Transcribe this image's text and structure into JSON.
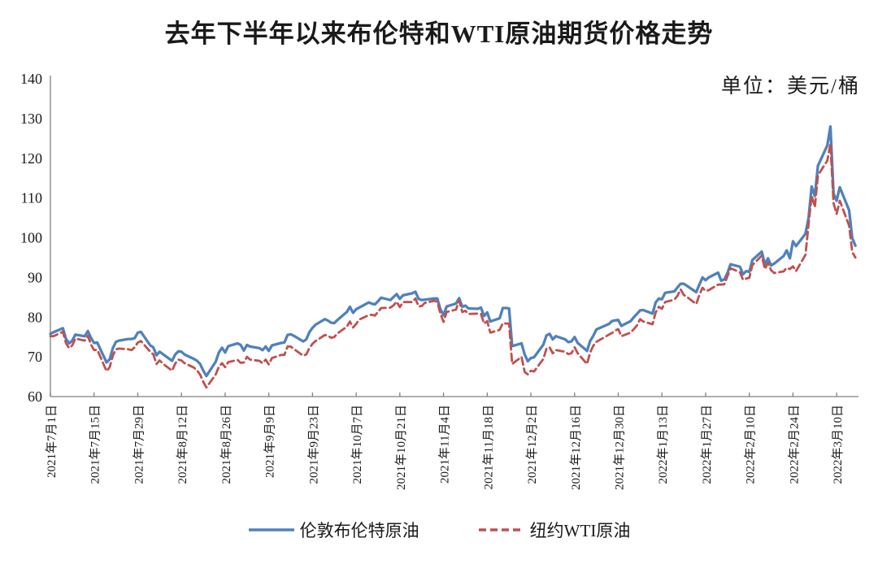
{
  "title": "去年下半年以来布伦特和WTI原油期货价格走势",
  "unit_label": "单位：美元/桶",
  "legend": [
    {
      "label": "伦敦布伦特原油",
      "color": "#4F81BD",
      "line_style": "solid"
    },
    {
      "label": "纽约WTI原油",
      "color": "#C0504D",
      "line_style": "dashed"
    }
  ],
  "chart_data": {
    "type": "line",
    "title": "去年下半年以来布伦特和WTI原油期货价格走势",
    "unit": "美元/桶",
    "grid": false,
    "legend_position": "bottom",
    "axis_color": "#808080",
    "ylim": [
      60,
      140
    ],
    "yticks": [
      60,
      70,
      80,
      90,
      100,
      110,
      120,
      130,
      140
    ],
    "xtick_interval_days": 14,
    "xtick_labels": [
      "2021年7月1日",
      "2021年7月15日",
      "2021年7月29日",
      "2021年8月12日",
      "2021年8月26日",
      "2021年9月9日",
      "2021年9月23日",
      "2021年10月7日",
      "2021年10月21日",
      "2021年11月4日",
      "2021年11月18日",
      "2021年12月2日",
      "2021年12月16日",
      "2021年12月30日",
      "2022年1月13日",
      "2022年1月27日",
      "2022年2月10日",
      "2022年2月24日",
      "2022年3月10日"
    ],
    "x_range": [
      "2021-07-01",
      "2022-03-17"
    ],
    "x_dates": [
      "2021-07-01",
      "2021-07-02",
      "2021-07-05",
      "2021-07-06",
      "2021-07-07",
      "2021-07-08",
      "2021-07-09",
      "2021-07-12",
      "2021-07-13",
      "2021-07-14",
      "2021-07-15",
      "2021-07-16",
      "2021-07-19",
      "2021-07-20",
      "2021-07-21",
      "2021-07-22",
      "2021-07-23",
      "2021-07-26",
      "2021-07-27",
      "2021-07-28",
      "2021-07-29",
      "2021-07-30",
      "2021-08-02",
      "2021-08-03",
      "2021-08-04",
      "2021-08-05",
      "2021-08-06",
      "2021-08-09",
      "2021-08-10",
      "2021-08-11",
      "2021-08-12",
      "2021-08-13",
      "2021-08-16",
      "2021-08-17",
      "2021-08-18",
      "2021-08-19",
      "2021-08-20",
      "2021-08-23",
      "2021-08-24",
      "2021-08-25",
      "2021-08-26",
      "2021-08-27",
      "2021-08-30",
      "2021-08-31",
      "2021-09-01",
      "2021-09-02",
      "2021-09-03",
      "2021-09-06",
      "2021-09-07",
      "2021-09-08",
      "2021-09-09",
      "2021-09-10",
      "2021-09-13",
      "2021-09-14",
      "2021-09-15",
      "2021-09-16",
      "2021-09-17",
      "2021-09-20",
      "2021-09-21",
      "2021-09-22",
      "2021-09-23",
      "2021-09-24",
      "2021-09-27",
      "2021-09-28",
      "2021-09-29",
      "2021-09-30",
      "2021-10-01",
      "2021-10-04",
      "2021-10-05",
      "2021-10-06",
      "2021-10-07",
      "2021-10-08",
      "2021-10-11",
      "2021-10-12",
      "2021-10-13",
      "2021-10-14",
      "2021-10-15",
      "2021-10-18",
      "2021-10-19",
      "2021-10-20",
      "2021-10-21",
      "2021-10-22",
      "2021-10-25",
      "2021-10-26",
      "2021-10-27",
      "2021-10-28",
      "2021-10-29",
      "2021-11-01",
      "2021-11-02",
      "2021-11-03",
      "2021-11-04",
      "2021-11-05",
      "2021-11-08",
      "2021-11-09",
      "2021-11-10",
      "2021-11-11",
      "2021-11-12",
      "2021-11-15",
      "2021-11-16",
      "2021-11-17",
      "2021-11-18",
      "2021-11-19",
      "2021-11-22",
      "2021-11-23",
      "2021-11-24",
      "2021-11-25",
      "2021-11-26",
      "2021-11-29",
      "2021-11-30",
      "2021-12-01",
      "2021-12-02",
      "2021-12-03",
      "2021-12-06",
      "2021-12-07",
      "2021-12-08",
      "2021-12-09",
      "2021-12-10",
      "2021-12-13",
      "2021-12-14",
      "2021-12-15",
      "2021-12-16",
      "2021-12-17",
      "2021-12-20",
      "2021-12-21",
      "2021-12-22",
      "2021-12-23",
      "2021-12-27",
      "2021-12-28",
      "2021-12-29",
      "2021-12-30",
      "2021-12-31",
      "2022-01-03",
      "2022-01-04",
      "2022-01-05",
      "2022-01-06",
      "2022-01-07",
      "2022-01-10",
      "2022-01-11",
      "2022-01-12",
      "2022-01-13",
      "2022-01-14",
      "2022-01-17",
      "2022-01-18",
      "2022-01-19",
      "2022-01-20",
      "2022-01-21",
      "2022-01-24",
      "2022-01-25",
      "2022-01-26",
      "2022-01-27",
      "2022-01-28",
      "2022-01-31",
      "2022-02-01",
      "2022-02-02",
      "2022-02-03",
      "2022-02-04",
      "2022-02-07",
      "2022-02-08",
      "2022-02-09",
      "2022-02-10",
      "2022-02-11",
      "2022-02-14",
      "2022-02-15",
      "2022-02-16",
      "2022-02-17",
      "2022-02-18",
      "2022-02-21",
      "2022-02-22",
      "2022-02-23",
      "2022-02-24",
      "2022-02-25",
      "2022-02-28",
      "2022-03-01",
      "2022-03-02",
      "2022-03-03",
      "2022-03-04",
      "2022-03-07",
      "2022-03-08",
      "2022-03-09",
      "2022-03-10",
      "2022-03-11",
      "2022-03-14",
      "2022-03-15",
      "2022-03-16"
    ],
    "series": [
      {
        "name": "伦敦布伦特原油",
        "data_name": "brent-price-line",
        "color": "#4F81BD",
        "dashed": false,
        "values": [
          75.8,
          76.2,
          77.2,
          74.5,
          73.4,
          74.1,
          75.6,
          75.2,
          76.5,
          74.8,
          73.5,
          73.6,
          68.6,
          69.4,
          72.2,
          73.8,
          74.1,
          74.5,
          74.5,
          74.7,
          76.1,
          76.3,
          72.9,
          72.4,
          70.4,
          71.3,
          70.7,
          69.0,
          70.6,
          71.4,
          71.3,
          70.6,
          69.5,
          69.0,
          68.2,
          66.5,
          65.2,
          68.8,
          71.1,
          72.3,
          71.1,
          72.7,
          73.4,
          73.0,
          71.6,
          73.0,
          72.6,
          72.2,
          71.7,
          72.6,
          71.5,
          72.9,
          73.5,
          73.6,
          75.5,
          75.7,
          75.3,
          73.9,
          74.4,
          76.2,
          77.3,
          78.1,
          79.5,
          79.1,
          78.6,
          78.5,
          79.3,
          81.3,
          82.6,
          81.1,
          82.0,
          82.4,
          83.7,
          83.4,
          83.2,
          84.0,
          84.9,
          84.3,
          85.1,
          85.8,
          84.6,
          85.5,
          86.0,
          86.4,
          84.6,
          84.3,
          84.4,
          84.7,
          84.7,
          82.0,
          80.5,
          82.7,
          83.4,
          84.8,
          82.6,
          82.9,
          82.2,
          82.1,
          82.4,
          80.3,
          81.2,
          78.9,
          79.7,
          82.3,
          82.3,
          82.2,
          72.7,
          73.4,
          70.6,
          68.9,
          69.7,
          69.9,
          73.1,
          75.4,
          75.8,
          74.4,
          75.2,
          74.4,
          73.7,
          73.9,
          75.0,
          73.5,
          71.5,
          74.0,
          75.3,
          76.9,
          78.3,
          79.0,
          79.2,
          79.3,
          77.8,
          79.0,
          80.0,
          80.8,
          81.7,
          81.8,
          80.9,
          83.7,
          84.7,
          84.5,
          86.1,
          86.5,
          87.5,
          88.4,
          88.4,
          87.9,
          86.3,
          88.2,
          90.0,
          89.3,
          90.0,
          91.2,
          89.2,
          89.5,
          91.1,
          93.3,
          92.7,
          90.8,
          91.6,
          91.4,
          94.4,
          96.5,
          93.3,
          94.8,
          93.0,
          93.5,
          95.4,
          96.8,
          94.8,
          99.1,
          97.9,
          101.0,
          105.0,
          112.9,
          110.5,
          118.1,
          123.2,
          128.0,
          111.1,
          109.3,
          112.7,
          106.9,
          99.9,
          98.0
        ]
      },
      {
        "name": "纽约WTI原油",
        "data_name": "wti-price-line",
        "color": "#C0504D",
        "dashed": true,
        "values": [
          75.2,
          75.2,
          76.3,
          73.4,
          72.2,
          72.9,
          74.6,
          74.1,
          75.3,
          73.1,
          71.7,
          71.8,
          66.4,
          67.4,
          70.3,
          71.9,
          72.1,
          71.9,
          71.7,
          72.4,
          73.6,
          74.0,
          71.3,
          70.6,
          68.2,
          69.1,
          68.3,
          66.5,
          68.3,
          69.3,
          69.1,
          68.4,
          67.3,
          66.6,
          65.5,
          63.7,
          62.3,
          65.6,
          67.5,
          68.4,
          67.4,
          68.7,
          69.2,
          68.5,
          68.6,
          70.0,
          69.3,
          69.0,
          68.4,
          69.3,
          68.1,
          69.7,
          70.5,
          70.5,
          72.6,
          72.6,
          72.0,
          70.3,
          70.6,
          72.2,
          73.3,
          74.0,
          75.5,
          75.3,
          74.8,
          75.0,
          75.9,
          77.6,
          78.9,
          77.4,
          78.3,
          79.4,
          80.5,
          80.6,
          80.4,
          81.3,
          82.3,
          82.4,
          83.0,
          83.9,
          82.5,
          83.8,
          83.8,
          84.7,
          82.7,
          82.8,
          83.6,
          84.1,
          83.9,
          80.9,
          78.8,
          81.3,
          81.9,
          84.2,
          81.3,
          81.6,
          80.8,
          80.9,
          80.8,
          78.4,
          79.0,
          76.1,
          76.8,
          78.5,
          78.4,
          78.4,
          68.2,
          70.0,
          66.2,
          65.6,
          66.5,
          66.3,
          69.5,
          72.1,
          72.4,
          70.9,
          71.7,
          71.3,
          70.7,
          70.9,
          72.4,
          70.9,
          68.2,
          71.1,
          72.8,
          73.8,
          75.6,
          76.0,
          76.6,
          77.0,
          75.2,
          76.1,
          77.0,
          77.9,
          79.5,
          78.9,
          78.2,
          81.2,
          82.6,
          82.1,
          83.8,
          84.4,
          85.4,
          87.0,
          85.6,
          85.1,
          83.3,
          85.6,
          87.4,
          86.6,
          86.8,
          88.2,
          88.2,
          88.3,
          90.3,
          92.3,
          91.3,
          89.4,
          89.7,
          89.9,
          93.1,
          95.5,
          92.1,
          93.7,
          91.8,
          91.1,
          91.5,
          92.4,
          92.1,
          92.8,
          91.6,
          95.7,
          103.4,
          110.6,
          107.7,
          115.7,
          119.4,
          123.7,
          108.7,
          106.0,
          109.3,
          103.0,
          96.4,
          95.0
        ]
      }
    ]
  }
}
